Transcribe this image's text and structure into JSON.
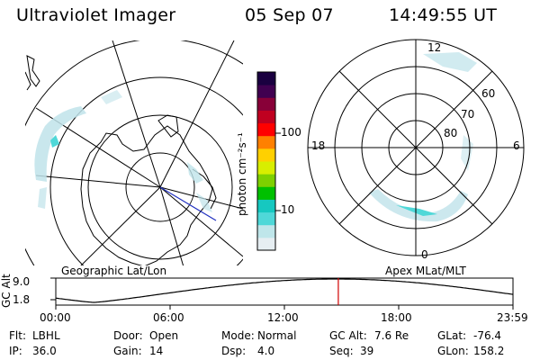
{
  "header": {
    "title": "Ultraviolet Imager",
    "date": "05 Sep 07",
    "time": "14:49:55 UT"
  },
  "left_panel": {
    "label": "Geographic Lat/Lon"
  },
  "right_panel": {
    "label": "Apex MLat/MLT",
    "mlt_labels": {
      "top": "12",
      "left": "18",
      "right": "6",
      "bottom": "0"
    },
    "lat_labels": [
      "60",
      "70",
      "80"
    ]
  },
  "colorbar": {
    "unit": "photon cm⁻²s⁻¹",
    "ticks": [
      "100",
      "10"
    ],
    "colors": [
      "#e6eef2",
      "#bfe6ea",
      "#4fd8d8",
      "#16c8c0",
      "#00c000",
      "#7ed000",
      "#d8ee00",
      "#ffd000",
      "#ff8000",
      "#ff0000",
      "#c00020",
      "#880038",
      "#400050",
      "#1a0040"
    ]
  },
  "altitude_plot": {
    "ylabel": "GC Alt",
    "yticks": [
      "9.0",
      "1.8"
    ],
    "xticks": [
      "00:00",
      "06:00",
      "12:00",
      "18:00",
      "23:59"
    ],
    "curve_color": "#000000",
    "marker_color": "#d00000",
    "current_time_hours": 14.83,
    "orbit_min_time_hours": 2.0,
    "orbit_max_time_hours": 11.2
  },
  "info": {
    "row1": [
      {
        "label": "Flt:",
        "value": "LBHL"
      },
      {
        "label": "Door:",
        "value": "Open"
      },
      {
        "label": "Mode:",
        "value": "Normal"
      },
      {
        "label": "GC Alt:",
        "value": "7.6 Re"
      },
      {
        "label": "GLat:",
        "value": "-76.4"
      }
    ],
    "row2": [
      {
        "label": "IP:",
        "value": "36.0"
      },
      {
        "label": "Gain:",
        "value": "14"
      },
      {
        "label": "Dsp:",
        "value": "4.0"
      },
      {
        "label": "Seq:",
        "value": "39"
      },
      {
        "label": "GLon:",
        "value": "158.2"
      }
    ]
  }
}
